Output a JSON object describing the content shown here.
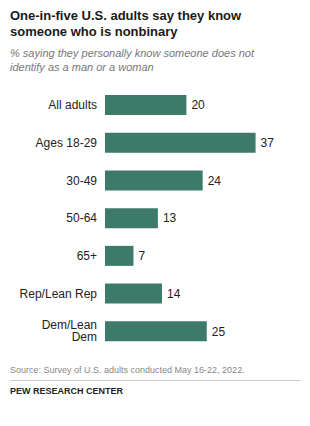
{
  "chart_data": {
    "type": "bar",
    "orientation": "horizontal",
    "title": "One-in-five U.S. adults say they know\nsomeone who is nonbinary",
    "subtitle": "% saying they personally know someone does not\nidentify as a man or a woman",
    "categories": [
      "All adults",
      "Ages 18-29",
      "30-49",
      "50-64",
      "65+",
      "Rep/Lean Rep",
      "Dem/Lean Dem"
    ],
    "values": [
      20,
      37,
      24,
      13,
      7,
      14,
      25
    ],
    "color": "#3d7a6a",
    "xlim": [
      0,
      43
    ],
    "data_labels": true,
    "tick_labels": "y",
    "grid": false,
    "annotations": [
      "Source: Survey of U.S. adults conducted May 16-22, 2022.",
      "PEW RESEARCH CENTER"
    ]
  }
}
